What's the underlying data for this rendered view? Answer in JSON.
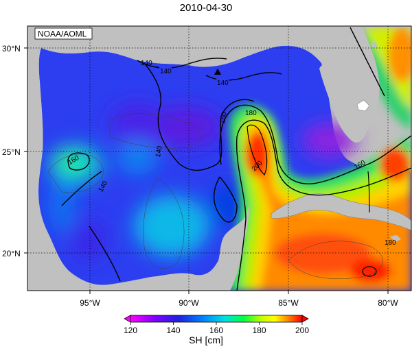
{
  "title": "2010-04-30",
  "credit": "NOAA/AOML",
  "lat_labels": [
    "30°N",
    "25°N",
    "20°N"
  ],
  "lon_labels": [
    "95°W",
    "90°W",
    "85°W",
    "80°W"
  ],
  "contour_labels": [
    "140",
    "140",
    "140",
    "140",
    "160",
    "180",
    "200",
    "160",
    "180",
    "160",
    "140"
  ],
  "colorbar": {
    "label": "SH [cm]",
    "ticks": [
      "120",
      "140",
      "160",
      "180",
      "200"
    ],
    "min": 120,
    "max": 200
  },
  "colors": {
    "land": "#c0c0c0",
    "ocean_low": "#2a2ae6",
    "loop_current": "#ff2a00"
  },
  "marker": "triangle"
}
